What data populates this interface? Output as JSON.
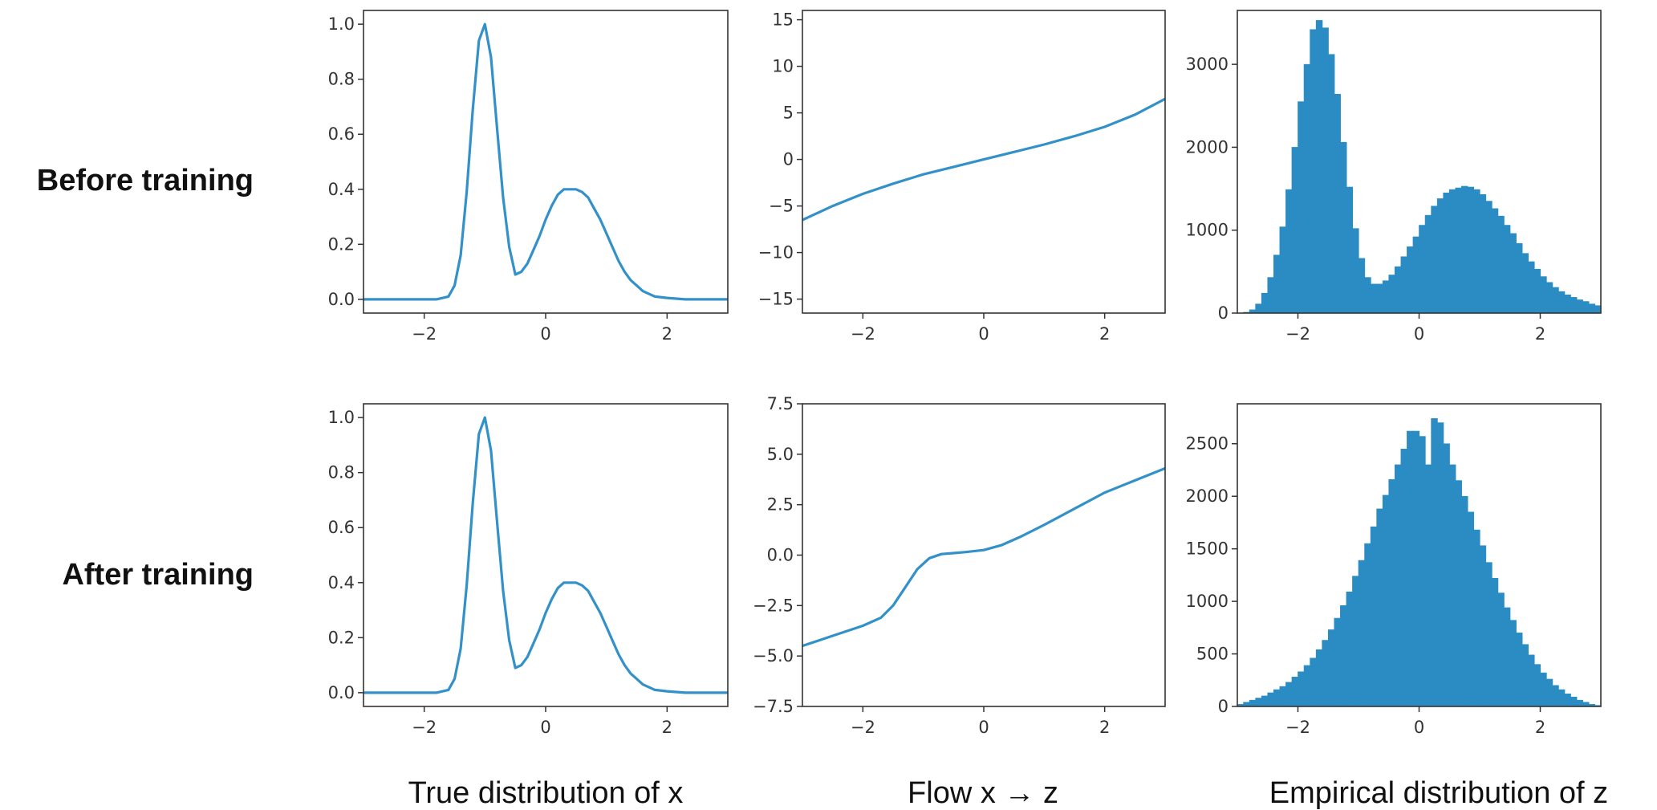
{
  "row_labels": [
    "Before training",
    "After training"
  ],
  "column_labels": [
    "True distribution of x",
    "Flow x → z",
    "Empirical distribution of z"
  ],
  "colors": {
    "line": "#3391c9",
    "bar": "#2b8cc4",
    "axes": "#333333"
  },
  "chart_data": [
    {
      "panel": "before-true-distribution",
      "type": "line",
      "xlim": [
        -3,
        3
      ],
      "ylim": [
        -0.05,
        1.05
      ],
      "xticks": [
        -2,
        0,
        2
      ],
      "xtick_labels": [
        "−2",
        "0",
        "2"
      ],
      "yticks": [
        0,
        0.2,
        0.4,
        0.6,
        0.8,
        1.0
      ],
      "ytick_labels": [
        "0.0",
        "0.2",
        "0.4",
        "0.6",
        "0.8",
        "1.0"
      ],
      "x": [
        -3.0,
        -1.8,
        -1.6,
        -1.5,
        -1.4,
        -1.3,
        -1.2,
        -1.1,
        -1.0,
        -0.9,
        -0.8,
        -0.7,
        -0.6,
        -0.5,
        -0.4,
        -0.3,
        -0.2,
        -0.1,
        0.0,
        0.1,
        0.2,
        0.3,
        0.4,
        0.5,
        0.6,
        0.7,
        0.8,
        0.9,
        1.0,
        1.1,
        1.2,
        1.3,
        1.4,
        1.5,
        1.6,
        1.8,
        2.0,
        2.3,
        2.6,
        3.0
      ],
      "y": [
        0.0,
        0.0,
        0.01,
        0.05,
        0.16,
        0.39,
        0.69,
        0.94,
        1.0,
        0.88,
        0.62,
        0.37,
        0.19,
        0.09,
        0.1,
        0.13,
        0.18,
        0.23,
        0.29,
        0.34,
        0.38,
        0.4,
        0.4,
        0.4,
        0.39,
        0.37,
        0.33,
        0.29,
        0.24,
        0.19,
        0.14,
        0.1,
        0.07,
        0.05,
        0.03,
        0.01,
        0.005,
        0.0,
        0.0,
        0.0
      ]
    },
    {
      "panel": "before-flow",
      "type": "line",
      "xlim": [
        -3,
        3
      ],
      "ylim": [
        -16.5,
        16
      ],
      "xticks": [
        -2,
        0,
        2
      ],
      "xtick_labels": [
        "−2",
        "0",
        "2"
      ],
      "yticks": [
        -15,
        -10,
        -5,
        0,
        5,
        10,
        15
      ],
      "ytick_labels": [
        "−15",
        "−10",
        "−5",
        "0",
        "5",
        "10",
        "15"
      ],
      "x": [
        -3.0,
        -2.5,
        -2.0,
        -1.5,
        -1.0,
        -0.5,
        0.0,
        0.5,
        1.0,
        1.5,
        2.0,
        2.5,
        3.0
      ],
      "y": [
        -6.5,
        -5.0,
        -3.7,
        -2.6,
        -1.6,
        -0.8,
        0.0,
        0.8,
        1.6,
        2.5,
        3.5,
        4.8,
        6.5
      ]
    },
    {
      "panel": "before-empirical-z",
      "type": "bar",
      "xlim": [
        -3,
        3
      ],
      "ylim": [
        0,
        3650
      ],
      "xticks": [
        -2,
        0,
        2
      ],
      "xtick_labels": [
        "−2",
        "0",
        "2"
      ],
      "yticks": [
        0,
        1000,
        2000,
        3000
      ],
      "ytick_labels": [
        "0",
        "1000",
        "2000",
        "3000"
      ],
      "bin_start": -2.9,
      "bin_width": 0.1,
      "values": [
        10,
        40,
        110,
        240,
        430,
        700,
        1040,
        1490,
        2000,
        2550,
        3000,
        3420,
        3530,
        3440,
        3120,
        2640,
        2060,
        1520,
        1020,
        660,
        430,
        350,
        350,
        390,
        460,
        560,
        680,
        800,
        920,
        1060,
        1180,
        1290,
        1380,
        1450,
        1490,
        1510,
        1530,
        1520,
        1490,
        1430,
        1350,
        1260,
        1170,
        1060,
        960,
        840,
        720,
        620,
        530,
        440,
        370,
        310,
        260,
        220,
        190,
        160,
        140,
        110,
        90,
        70
      ]
    },
    {
      "panel": "after-true-distribution",
      "type": "line",
      "xlim": [
        -3,
        3
      ],
      "ylim": [
        -0.05,
        1.05
      ],
      "xticks": [
        -2,
        0,
        2
      ],
      "xtick_labels": [
        "−2",
        "0",
        "2"
      ],
      "yticks": [
        0,
        0.2,
        0.4,
        0.6,
        0.8,
        1.0
      ],
      "ytick_labels": [
        "0.0",
        "0.2",
        "0.4",
        "0.6",
        "0.8",
        "1.0"
      ],
      "x": [
        -3.0,
        -1.8,
        -1.6,
        -1.5,
        -1.4,
        -1.3,
        -1.2,
        -1.1,
        -1.0,
        -0.9,
        -0.8,
        -0.7,
        -0.6,
        -0.5,
        -0.4,
        -0.3,
        -0.2,
        -0.1,
        0.0,
        0.1,
        0.2,
        0.3,
        0.4,
        0.5,
        0.6,
        0.7,
        0.8,
        0.9,
        1.0,
        1.1,
        1.2,
        1.3,
        1.4,
        1.5,
        1.6,
        1.8,
        2.0,
        2.3,
        2.6,
        3.0
      ],
      "y": [
        0.0,
        0.0,
        0.01,
        0.05,
        0.16,
        0.39,
        0.69,
        0.94,
        1.0,
        0.88,
        0.62,
        0.37,
        0.19,
        0.09,
        0.1,
        0.13,
        0.18,
        0.23,
        0.29,
        0.34,
        0.38,
        0.4,
        0.4,
        0.4,
        0.39,
        0.37,
        0.33,
        0.29,
        0.24,
        0.19,
        0.14,
        0.1,
        0.07,
        0.05,
        0.03,
        0.01,
        0.005,
        0.0,
        0.0,
        0.0
      ]
    },
    {
      "panel": "after-flow",
      "type": "line",
      "xlim": [
        -3,
        3
      ],
      "ylim": [
        -7.5,
        7.5
      ],
      "xticks": [
        -2,
        0,
        2
      ],
      "xtick_labels": [
        "−2",
        "0",
        "2"
      ],
      "yticks": [
        -7.5,
        -5.0,
        -2.5,
        0.0,
        2.5,
        5.0,
        7.5
      ],
      "ytick_labels": [
        "−7.5",
        "−5.0",
        "−2.5",
        "0.0",
        "2.5",
        "5.0",
        "7.5"
      ],
      "x": [
        -3.0,
        -2.5,
        -2.0,
        -1.7,
        -1.5,
        -1.3,
        -1.1,
        -0.9,
        -0.7,
        -0.5,
        -0.3,
        0.0,
        0.3,
        0.6,
        1.0,
        1.5,
        2.0,
        2.5,
        3.0
      ],
      "y": [
        -4.5,
        -4.0,
        -3.5,
        -3.1,
        -2.5,
        -1.6,
        -0.7,
        -0.15,
        0.05,
        0.1,
        0.15,
        0.25,
        0.5,
        0.9,
        1.5,
        2.3,
        3.1,
        3.7,
        4.3
      ]
    },
    {
      "panel": "after-empirical-z",
      "type": "bar",
      "xlim": [
        -3,
        3
      ],
      "ylim": [
        0,
        2880
      ],
      "xticks": [
        -2,
        0,
        2
      ],
      "xtick_labels": [
        "−2",
        "0",
        "2"
      ],
      "yticks": [
        0,
        500,
        1000,
        1500,
        2000,
        2500
      ],
      "ytick_labels": [
        "0",
        "500",
        "1000",
        "1500",
        "2000",
        "2500"
      ],
      "bin_start": -3.0,
      "bin_width": 0.1,
      "values": [
        20,
        40,
        60,
        80,
        100,
        130,
        160,
        190,
        230,
        280,
        330,
        390,
        460,
        540,
        630,
        730,
        840,
        960,
        1090,
        1240,
        1390,
        1550,
        1710,
        1880,
        2010,
        2160,
        2300,
        2450,
        2620,
        2620,
        2570,
        2300,
        2740,
        2700,
        2500,
        2300,
        2150,
        2000,
        1850,
        1680,
        1530,
        1370,
        1220,
        1080,
        940,
        820,
        700,
        590,
        490,
        400,
        320,
        260,
        200,
        160,
        120,
        90,
        60,
        40,
        20,
        10
      ]
    }
  ]
}
